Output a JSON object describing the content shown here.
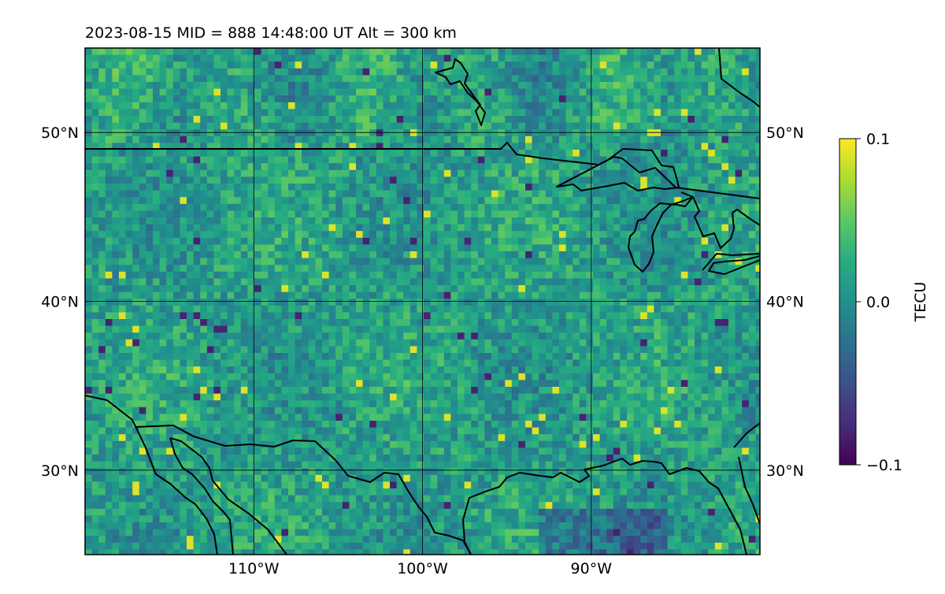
{
  "title": "2023-08-15  MID = 888    14:48:00  UT  Alt = 300 km",
  "map": {
    "lon_range": [
      -120,
      -80
    ],
    "lat_range": [
      25,
      55
    ],
    "grid_lons": [
      -110,
      -100,
      -90
    ],
    "grid_lats": [
      30,
      40,
      50
    ],
    "lon_ticks": [
      {
        "value": -110,
        "label": "110°W"
      },
      {
        "value": -100,
        "label": "100°W"
      },
      {
        "value": -90,
        "label": "90°W"
      }
    ],
    "lat_ticks": [
      {
        "value": 30,
        "label": "30°N"
      },
      {
        "value": 40,
        "label": "40°N"
      },
      {
        "value": 50,
        "label": "50°N"
      }
    ]
  },
  "colorbar": {
    "label": "TECU",
    "colormap": "viridis",
    "vmin": -0.1,
    "vmax": 0.1,
    "ticks": [
      {
        "value": 0.1,
        "label": "0.1"
      },
      {
        "value": 0.0,
        "label": "0.0"
      },
      {
        "value": -0.1,
        "label": "−0.1"
      }
    ]
  },
  "colors": {
    "viridis": [
      "#440154",
      "#472c7a",
      "#3b518b",
      "#2c718e",
      "#21908d",
      "#27ad81",
      "#5cc863",
      "#aadc32",
      "#fde725"
    ]
  }
}
